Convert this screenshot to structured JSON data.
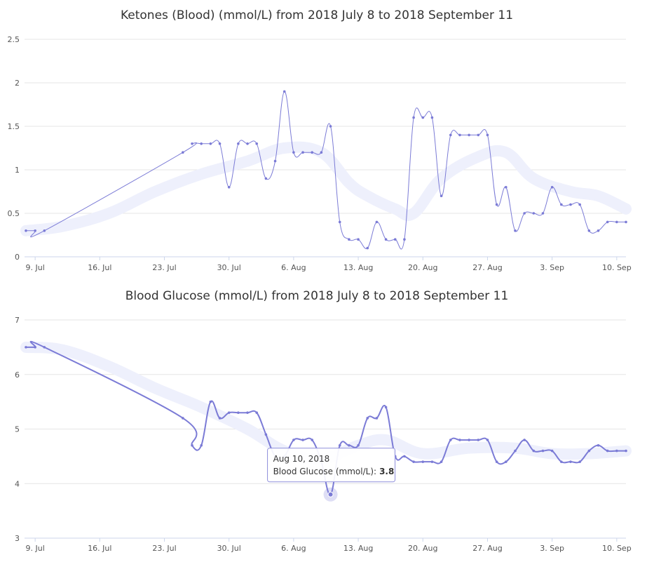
{
  "colors": {
    "line": "#7b7bd6",
    "trend": "#eef0fc",
    "grid": "#e6e6e6",
    "text": "#333333"
  },
  "x_ticks": [
    "9. Jul",
    "16. Jul",
    "23. Jul",
    "30. Jul",
    "6. Aug",
    "13. Aug",
    "20. Aug",
    "27. Aug",
    "3. Sep",
    "10. Sep"
  ],
  "chart_data": [
    {
      "type": "line",
      "title": "Ketones (Blood) (mmol/L) from 2018 July 8 to 2018 September 11",
      "xlabel": "",
      "ylabel": "",
      "x_range": [
        "2018-07-08",
        "2018-09-11"
      ],
      "ylim": [
        0,
        2.5
      ],
      "y_ticks": [
        "0",
        "0.5",
        "1",
        "1.5",
        "2",
        "2.5"
      ],
      "grid": true,
      "series": [
        {
          "x": [
            "2018-07-08",
            "2018-07-09",
            "2018-07-10",
            "2018-07-25",
            "2018-07-26",
            "2018-07-27",
            "2018-07-28",
            "2018-07-29",
            "2018-07-30",
            "2018-07-31",
            "2018-08-01",
            "2018-08-02",
            "2018-08-03",
            "2018-08-04",
            "2018-08-05",
            "2018-08-06",
            "2018-08-07",
            "2018-08-08",
            "2018-08-09",
            "2018-08-10",
            "2018-08-11",
            "2018-08-12",
            "2018-08-13",
            "2018-08-14",
            "2018-08-15",
            "2018-08-16",
            "2018-08-17",
            "2018-08-18",
            "2018-08-19",
            "2018-08-20",
            "2018-08-21",
            "2018-08-22",
            "2018-08-23",
            "2018-08-24",
            "2018-08-25",
            "2018-08-26",
            "2018-08-27",
            "2018-08-28",
            "2018-08-29",
            "2018-08-30",
            "2018-08-31",
            "2018-09-01",
            "2018-09-02",
            "2018-09-03",
            "2018-09-04",
            "2018-09-05",
            "2018-09-06",
            "2018-09-07",
            "2018-09-08",
            "2018-09-09",
            "2018-09-10",
            "2018-09-11"
          ],
          "values": [
            0.3,
            0.3,
            0.3,
            1.2,
            1.3,
            1.3,
            1.3,
            1.3,
            0.8,
            1.3,
            1.3,
            1.3,
            0.9,
            1.1,
            1.9,
            1.2,
            1.2,
            1.2,
            1.2,
            1.5,
            0.4,
            0.2,
            0.2,
            0.1,
            0.4,
            0.2,
            0.2,
            0.2,
            1.6,
            1.6,
            1.6,
            0.7,
            1.4,
            1.4,
            1.4,
            1.4,
            1.4,
            0.6,
            0.8,
            0.3,
            0.5,
            0.5,
            0.5,
            0.8,
            0.6,
            0.6,
            0.6,
            0.3,
            0.3,
            0.4,
            0.4,
            0.4
          ]
        }
      ],
      "trend": {
        "x": [
          "2018-07-08",
          "2018-07-12",
          "2018-07-17",
          "2018-07-22",
          "2018-07-27",
          "2018-08-01",
          "2018-08-05",
          "2018-08-09",
          "2018-08-12",
          "2018-08-14",
          "2018-08-17",
          "2018-08-19",
          "2018-08-22",
          "2018-08-26",
          "2018-08-29",
          "2018-09-01",
          "2018-09-05",
          "2018-09-08",
          "2018-09-11"
        ],
        "values": [
          0.3,
          0.35,
          0.5,
          0.75,
          0.95,
          1.1,
          1.25,
          1.2,
          0.85,
          0.7,
          0.55,
          0.5,
          0.9,
          1.15,
          1.2,
          0.9,
          0.75,
          0.7,
          0.55
        ]
      }
    },
    {
      "type": "line",
      "title": "Blood Glucose (mmol/L) from 2018 July 8 to 2018 September 11",
      "xlabel": "",
      "ylabel": "",
      "x_range": [
        "2018-07-08",
        "2018-09-11"
      ],
      "ylim": [
        3,
        7
      ],
      "y_ticks": [
        "3",
        "4",
        "5",
        "6",
        "7"
      ],
      "grid": true,
      "series": [
        {
          "x": [
            "2018-07-08",
            "2018-07-09",
            "2018-07-10",
            "2018-07-25",
            "2018-07-26",
            "2018-07-27",
            "2018-07-28",
            "2018-07-29",
            "2018-07-30",
            "2018-07-31",
            "2018-08-01",
            "2018-08-02",
            "2018-08-03",
            "2018-08-04",
            "2018-08-05",
            "2018-08-06",
            "2018-08-07",
            "2018-08-08",
            "2018-08-09",
            "2018-08-10",
            "2018-08-11",
            "2018-08-12",
            "2018-08-13",
            "2018-08-14",
            "2018-08-15",
            "2018-08-16",
            "2018-08-17",
            "2018-08-18",
            "2018-08-19",
            "2018-08-20",
            "2018-08-21",
            "2018-08-22",
            "2018-08-23",
            "2018-08-24",
            "2018-08-25",
            "2018-08-26",
            "2018-08-27",
            "2018-08-28",
            "2018-08-29",
            "2018-08-30",
            "2018-08-31",
            "2018-09-01",
            "2018-09-02",
            "2018-09-03",
            "2018-09-04",
            "2018-09-05",
            "2018-09-06",
            "2018-09-07",
            "2018-09-08",
            "2018-09-09",
            "2018-09-10",
            "2018-09-11"
          ],
          "values": [
            6.5,
            6.5,
            6.5,
            5.2,
            4.7,
            4.7,
            5.5,
            5.2,
            5.3,
            5.3,
            5.3,
            5.3,
            4.9,
            4.5,
            4.5,
            4.8,
            4.8,
            4.8,
            4.4,
            3.8,
            4.7,
            4.7,
            4.7,
            5.2,
            5.2,
            5.4,
            4.5,
            4.5,
            4.4,
            4.4,
            4.4,
            4.4,
            4.8,
            4.8,
            4.8,
            4.8,
            4.8,
            4.4,
            4.4,
            4.6,
            4.8,
            4.6,
            4.6,
            4.6,
            4.4,
            4.4,
            4.4,
            4.6,
            4.7,
            4.6,
            4.6,
            4.6
          ]
        }
      ],
      "trend": {
        "x": [
          "2018-07-08",
          "2018-07-12",
          "2018-07-17",
          "2018-07-22",
          "2018-07-27",
          "2018-08-01",
          "2018-08-05",
          "2018-08-09",
          "2018-08-13",
          "2018-08-16",
          "2018-08-20",
          "2018-08-25",
          "2018-08-30",
          "2018-09-03",
          "2018-09-07",
          "2018-09-11"
        ],
        "values": [
          6.5,
          6.45,
          6.15,
          5.75,
          5.4,
          5.0,
          4.6,
          4.45,
          4.7,
          4.8,
          4.55,
          4.65,
          4.65,
          4.55,
          4.55,
          4.6
        ]
      },
      "tooltip": {
        "date": "Aug 10, 2018",
        "label": "Blood Glucose (mmol/L):",
        "value": "3.8",
        "x": "2018-08-10",
        "y": 3.8
      }
    }
  ]
}
